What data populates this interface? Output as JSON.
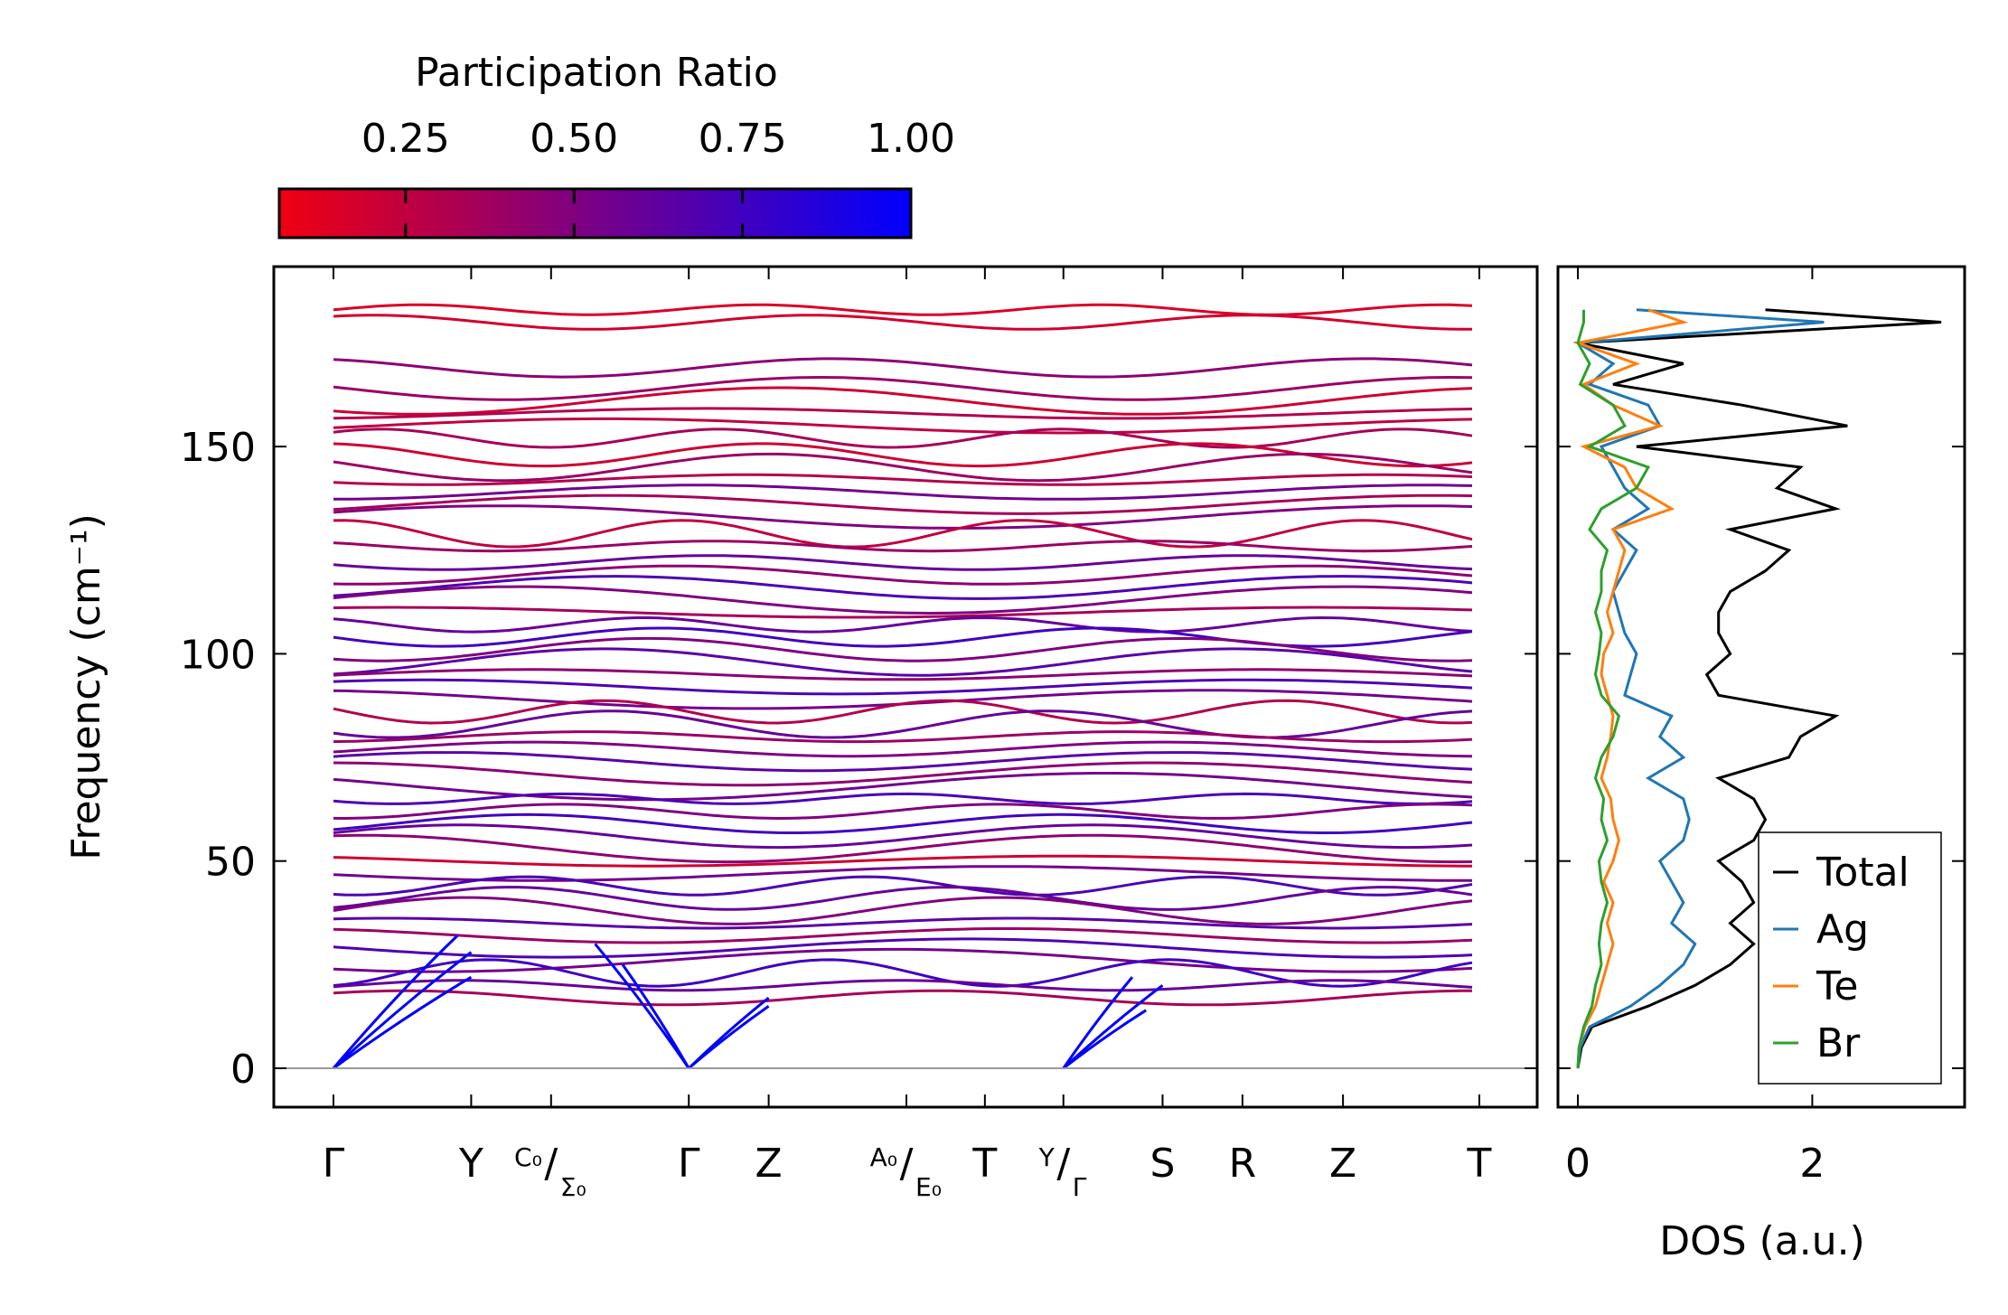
{
  "chart_data": [
    {
      "type": "line",
      "title": "",
      "xlabel": "",
      "ylabel": "Frequency (cm⁻¹)",
      "ylim": [
        -10,
        193
      ],
      "yticks": [
        "0",
        "50",
        "100",
        "150"
      ],
      "ytick_values": [
        0,
        50,
        100,
        150
      ],
      "kpoints": [
        {
          "label": "Γ",
          "pos": 0
        },
        {
          "label": "Y",
          "pos": 1
        },
        {
          "label": "C₀/Σ₀",
          "pos": 1.58,
          "top": "C₀",
          "bottom": "Σ₀"
        },
        {
          "label": "Γ",
          "pos": 2.58
        },
        {
          "label": "Z",
          "pos": 3.16
        },
        {
          "label": "A₀/E₀",
          "pos": 4.16,
          "top": "A₀",
          "bottom": "E₀"
        },
        {
          "label": "T",
          "pos": 4.73
        },
        {
          "label": "Y/Γ",
          "pos": 5.3,
          "top": "Y",
          "bottom": "Γ"
        },
        {
          "label": "S",
          "pos": 6.02
        },
        {
          "label": "R",
          "pos": 6.6
        },
        {
          "label": "Z",
          "pos": 7.33
        },
        {
          "label": "T",
          "pos": 8.32
        }
      ],
      "colorbar": {
        "label": "Participation Ratio",
        "ticks": [
          "0.25",
          "0.50",
          "0.75",
          "1.00"
        ],
        "tick_values": [
          0.25,
          0.5,
          0.75,
          1.0
        ],
        "range": [
          0.0625,
          1.0
        ],
        "low_color": "#f00010",
        "high_color": "#0000ff"
      },
      "bands": [
        {
          "freq": 183,
          "pr": 0.15
        },
        {
          "freq": 180,
          "pr": 0.18
        },
        {
          "freq": 169,
          "pr": 0.45
        },
        {
          "freq": 164,
          "pr": 0.4
        },
        {
          "freq": 161,
          "pr": 0.2
        },
        {
          "freq": 158,
          "pr": 0.3
        },
        {
          "freq": 155,
          "pr": 0.25
        },
        {
          "freq": 152,
          "pr": 0.35
        },
        {
          "freq": 148,
          "pr": 0.2
        },
        {
          "freq": 145,
          "pr": 0.4
        },
        {
          "freq": 142,
          "pr": 0.3
        },
        {
          "freq": 139,
          "pr": 0.55
        },
        {
          "freq": 136,
          "pr": 0.35
        },
        {
          "freq": 133,
          "pr": 0.5
        },
        {
          "freq": 129,
          "pr": 0.25
        },
        {
          "freq": 126,
          "pr": 0.4
        },
        {
          "freq": 122,
          "pr": 0.6
        },
        {
          "freq": 119,
          "pr": 0.45
        },
        {
          "freq": 116,
          "pr": 0.7
        },
        {
          "freq": 113,
          "pr": 0.5
        },
        {
          "freq": 110,
          "pr": 0.35
        },
        {
          "freq": 107,
          "pr": 0.6
        },
        {
          "freq": 104,
          "pr": 0.75
        },
        {
          "freq": 101,
          "pr": 0.5
        },
        {
          "freq": 98,
          "pr": 0.65
        },
        {
          "freq": 95,
          "pr": 0.45
        },
        {
          "freq": 92,
          "pr": 0.7
        },
        {
          "freq": 89,
          "pr": 0.55
        },
        {
          "freq": 86,
          "pr": 0.3
        },
        {
          "freq": 83,
          "pr": 0.6
        },
        {
          "freq": 80,
          "pr": 0.4
        },
        {
          "freq": 77,
          "pr": 0.5
        },
        {
          "freq": 74,
          "pr": 0.65
        },
        {
          "freq": 71,
          "pr": 0.45
        },
        {
          "freq": 68,
          "pr": 0.55
        },
        {
          "freq": 65,
          "pr": 0.7
        },
        {
          "freq": 62,
          "pr": 0.5
        },
        {
          "freq": 59,
          "pr": 0.75
        },
        {
          "freq": 56,
          "pr": 0.6
        },
        {
          "freq": 53,
          "pr": 0.45
        },
        {
          "freq": 50,
          "pr": 0.2
        },
        {
          "freq": 47,
          "pr": 0.55
        },
        {
          "freq": 44,
          "pr": 0.7
        },
        {
          "freq": 41,
          "pr": 0.6
        },
        {
          "freq": 38,
          "pr": 0.5
        },
        {
          "freq": 35,
          "pr": 0.65
        },
        {
          "freq": 32,
          "pr": 0.4
        },
        {
          "freq": 29,
          "pr": 0.7
        },
        {
          "freq": 26,
          "pr": 0.55
        },
        {
          "freq": 23,
          "pr": 0.75
        },
        {
          "freq": 20,
          "pr": 0.6
        },
        {
          "freq": 17,
          "pr": 0.35
        }
      ],
      "acoustic_pr": 1.0
    },
    {
      "type": "line",
      "xlabel": "DOS (a.u.)",
      "xlim": [
        -0.17,
        3.3
      ],
      "xticks": [
        "0",
        "2"
      ],
      "xtick_values": [
        0,
        2
      ],
      "legend_position": "lower-right",
      "freq": [
        0,
        5,
        10,
        15,
        20,
        25,
        30,
        35,
        40,
        45,
        50,
        55,
        60,
        65,
        70,
        75,
        80,
        85,
        90,
        95,
        100,
        105,
        110,
        115,
        120,
        125,
        130,
        135,
        140,
        145,
        150,
        155,
        160,
        165,
        170,
        175,
        180,
        183
      ],
      "series": [
        {
          "name": "Total",
          "color": "#000000",
          "values": [
            0,
            0.03,
            0.12,
            0.6,
            1.0,
            1.3,
            1.5,
            1.3,
            1.5,
            1.4,
            1.2,
            1.5,
            1.6,
            1.5,
            1.2,
            1.8,
            1.9,
            2.2,
            1.2,
            1.1,
            1.3,
            1.2,
            1.2,
            1.3,
            1.6,
            1.8,
            1.3,
            2.2,
            1.7,
            1.9,
            0.5,
            2.3,
            1.4,
            0.3,
            0.9,
            0,
            3.1,
            1.6
          ]
        },
        {
          "name": "Ag",
          "color": "#1f77b4",
          "values": [
            0,
            0.02,
            0.1,
            0.45,
            0.7,
            0.9,
            1.0,
            0.8,
            0.9,
            0.8,
            0.7,
            0.9,
            0.95,
            0.9,
            0.6,
            0.9,
            0.7,
            0.8,
            0.4,
            0.45,
            0.5,
            0.4,
            0.35,
            0.3,
            0.4,
            0.5,
            0.3,
            0.6,
            0.4,
            0.3,
            0.2,
            0.7,
            0.6,
            0.1,
            0.3,
            0,
            2.1,
            0.5
          ]
        },
        {
          "name": "Te",
          "color": "#ff7f0e",
          "values": [
            0,
            0.01,
            0.06,
            0.15,
            0.2,
            0.25,
            0.3,
            0.25,
            0.3,
            0.22,
            0.3,
            0.35,
            0.3,
            0.28,
            0.2,
            0.25,
            0.28,
            0.3,
            0.25,
            0.2,
            0.22,
            0.3,
            0.25,
            0.3,
            0.35,
            0.4,
            0.3,
            0.8,
            0.5,
            0.4,
            0.05,
            0.7,
            0.3,
            0.05,
            0.5,
            0,
            0.9,
            0.6
          ]
        },
        {
          "name": "Br",
          "color": "#2ca02c",
          "values": [
            0,
            0.01,
            0.05,
            0.12,
            0.15,
            0.2,
            0.18,
            0.2,
            0.25,
            0.2,
            0.18,
            0.25,
            0.2,
            0.22,
            0.15,
            0.2,
            0.3,
            0.35,
            0.2,
            0.15,
            0.18,
            0.2,
            0.15,
            0.2,
            0.2,
            0.25,
            0.1,
            0.2,
            0.5,
            0.6,
            0.1,
            0.4,
            0.3,
            0.02,
            0.1,
            0,
            0.05,
            0.05
          ]
        }
      ]
    }
  ]
}
